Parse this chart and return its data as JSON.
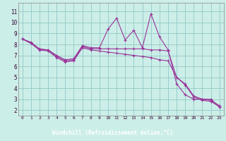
{
  "title": "",
  "xlabel": "Windchill (Refroidissement éolien,°C)",
  "background_color": "#cceee8",
  "grid_color": "#99cccc",
  "line_color": "#993399",
  "label_bg_color": "#6666aa",
  "label_text_color": "#ffffff",
  "x_ticks": [
    0,
    1,
    2,
    3,
    4,
    5,
    6,
    7,
    8,
    9,
    10,
    11,
    12,
    13,
    14,
    15,
    16,
    17,
    18,
    19,
    20,
    21,
    22,
    23
  ],
  "y_ticks": [
    2,
    3,
    4,
    5,
    6,
    7,
    8,
    9,
    10,
    11
  ],
  "xlim": [
    -0.5,
    23.5
  ],
  "ylim": [
    1.5,
    11.8
  ],
  "line1_x": [
    0,
    1,
    2,
    3,
    4,
    5,
    6,
    7,
    8,
    9,
    10,
    11,
    12,
    13,
    14,
    15,
    16,
    17,
    18,
    19,
    20,
    21,
    22,
    23
  ],
  "line1_y": [
    8.5,
    8.2,
    7.6,
    7.5,
    7.0,
    6.6,
    6.7,
    7.9,
    7.7,
    7.7,
    9.4,
    10.4,
    8.4,
    9.3,
    7.7,
    10.8,
    8.7,
    7.5,
    4.4,
    3.4,
    3.0,
    3.0,
    3.0,
    2.3
  ],
  "line2_x": [
    0,
    1,
    2,
    3,
    4,
    5,
    6,
    7,
    8,
    9,
    10,
    11,
    12,
    13,
    14,
    15,
    16,
    17,
    18,
    19,
    20,
    21,
    22,
    23
  ],
  "line2_y": [
    8.5,
    8.1,
    7.5,
    7.5,
    6.9,
    6.5,
    6.6,
    7.8,
    7.6,
    7.6,
    7.6,
    7.6,
    7.6,
    7.6,
    7.6,
    7.5,
    7.5,
    7.4,
    5.0,
    4.4,
    3.3,
    3.0,
    2.9,
    2.4
  ],
  "line3_x": [
    0,
    1,
    2,
    3,
    4,
    5,
    6,
    7,
    8,
    9,
    10,
    11,
    12,
    13,
    14,
    15,
    16,
    17,
    18,
    19,
    20,
    21,
    22,
    23
  ],
  "line3_y": [
    8.5,
    8.1,
    7.5,
    7.4,
    6.8,
    6.4,
    6.5,
    7.7,
    7.5,
    7.4,
    7.3,
    7.2,
    7.1,
    7.0,
    6.9,
    6.8,
    6.6,
    6.5,
    5.0,
    4.3,
    3.2,
    2.9,
    2.8,
    2.3
  ]
}
